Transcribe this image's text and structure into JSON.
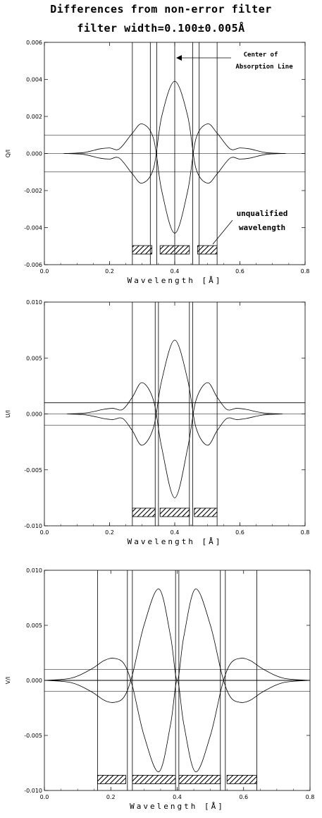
{
  "title_line1": "Differences from non-error filter",
  "title_line2": "filter width=0.100±0.005Å",
  "annotations": {
    "center_line1": "Center of",
    "center_line2": "Absorption Line",
    "unqualified_line1": "unqualified",
    "unqualified_line2": "wavelength"
  },
  "chart_data": [
    {
      "type": "line",
      "ylabel": "Q/I",
      "xlabel": "Wavelength [Å]",
      "xlim": [
        0.0,
        0.8
      ],
      "ylim": [
        -0.006,
        0.006
      ],
      "xticks": [
        "0.0",
        "0.2",
        "0.4",
        "0.6",
        "0.8"
      ],
      "yticks": [
        "-0.006",
        "-0.004",
        "-0.002",
        "0.000",
        "0.002",
        "0.004",
        "0.006"
      ],
      "threshold": 0.001,
      "series": [
        {
          "x": [
            0.06,
            0.12,
            0.17,
            0.2,
            0.23,
            0.27,
            0.3,
            0.335,
            0.36,
            0.4,
            0.44,
            0.465,
            0.5,
            0.53,
            0.57,
            0.6,
            0.63,
            0.68,
            0.74
          ],
          "values": [
            0,
            5e-05,
            0.00025,
            0.0003,
            0.00025,
            0.0011,
            0.0016,
            0.0008,
            -0.002,
            -0.0043,
            -0.002,
            0.0008,
            0.0016,
            0.0011,
            0.00025,
            0.0003,
            0.00025,
            5e-05,
            0
          ]
        },
        {
          "x": [
            0.06,
            0.12,
            0.17,
            0.2,
            0.23,
            0.27,
            0.3,
            0.335,
            0.36,
            0.4,
            0.44,
            0.465,
            0.5,
            0.53,
            0.57,
            0.6,
            0.63,
            0.68,
            0.74
          ],
          "values": [
            0,
            -5e-05,
            -0.00025,
            -0.0003,
            -0.00025,
            -0.0011,
            -0.0016,
            -0.0008,
            0.002,
            0.0039,
            0.002,
            -0.0008,
            -0.0016,
            -0.0011,
            -0.00025,
            -0.0003,
            -0.00025,
            -5e-05,
            0
          ]
        }
      ],
      "vlines": [
        0.27,
        0.325,
        0.345,
        0.4,
        0.455,
        0.475,
        0.53
      ],
      "unqualified_ranges": [
        [
          0.27,
          0.33
        ],
        [
          0.355,
          0.445
        ],
        [
          0.47,
          0.53
        ]
      ],
      "unqualified_y": -0.0052,
      "grid": false
    },
    {
      "type": "line",
      "ylabel": "U/I",
      "xlabel": "Wavelength [Å]",
      "xlim": [
        0.0,
        0.8
      ],
      "ylim": [
        -0.01,
        0.01
      ],
      "xticks": [
        "0.0",
        "0.2",
        "0.4",
        "0.6",
        "0.8"
      ],
      "yticks": [
        "-0.010",
        "-0.005",
        "0.000",
        "0.005",
        "0.010"
      ],
      "threshold": 0.001,
      "series": [
        {
          "x": [
            0.07,
            0.13,
            0.18,
            0.21,
            0.24,
            0.27,
            0.3,
            0.335,
            0.36,
            0.4,
            0.44,
            0.465,
            0.5,
            0.53,
            0.56,
            0.59,
            0.62,
            0.67,
            0.73
          ],
          "values": [
            0,
            0.0001,
            0.0004,
            0.0005,
            0.0004,
            0.0015,
            0.0028,
            0.0012,
            -0.003,
            -0.0075,
            -0.003,
            0.0012,
            0.0028,
            0.0015,
            0.0004,
            0.0005,
            0.0004,
            0.0001,
            0
          ]
        },
        {
          "x": [
            0.07,
            0.13,
            0.18,
            0.21,
            0.24,
            0.27,
            0.3,
            0.335,
            0.36,
            0.4,
            0.44,
            0.465,
            0.5,
            0.53,
            0.56,
            0.59,
            0.62,
            0.67,
            0.73
          ],
          "values": [
            0,
            -0.0001,
            -0.0004,
            -0.0005,
            -0.0004,
            -0.0015,
            -0.0028,
            -0.0012,
            0.003,
            0.0066,
            0.003,
            -0.0012,
            -0.0028,
            -0.0015,
            -0.0004,
            -0.0005,
            -0.0004,
            -0.0001,
            0
          ]
        }
      ],
      "vlines": [
        0.27,
        0.34,
        0.35,
        0.445,
        0.455,
        0.53
      ],
      "unqualified_ranges": [
        [
          0.27,
          0.34
        ],
        [
          0.355,
          0.445
        ],
        [
          0.46,
          0.53
        ]
      ],
      "unqualified_y": -0.0088,
      "grid": false
    },
    {
      "type": "line",
      "ylabel": "V/I",
      "xlabel": "Wavelength [Å]",
      "xlim": [
        0.0,
        0.8
      ],
      "ylim": [
        -0.01,
        0.01
      ],
      "xticks": [
        "0.0",
        "0.2",
        "0.4",
        "0.6",
        "0.8"
      ],
      "yticks": [
        "-0.010",
        "-0.005",
        "0.000",
        "0.005",
        "0.010"
      ],
      "threshold": 0.001,
      "series": [
        {
          "x": [
            0.0,
            0.08,
            0.14,
            0.18,
            0.21,
            0.24,
            0.265,
            0.3,
            0.345,
            0.38,
            0.4,
            0.42,
            0.455,
            0.5,
            0.535,
            0.56,
            0.59,
            0.62,
            0.66,
            0.72,
            0.8
          ],
          "values": [
            0,
            0.0002,
            0.001,
            0.0018,
            0.002,
            0.0015,
            -0.0005,
            -0.005,
            -0.0083,
            -0.004,
            0,
            -0.004,
            -0.0083,
            -0.005,
            -0.0005,
            0.0015,
            0.002,
            0.0018,
            0.001,
            0.0002,
            0
          ]
        },
        {
          "x": [
            0.0,
            0.08,
            0.14,
            0.18,
            0.21,
            0.24,
            0.265,
            0.3,
            0.345,
            0.38,
            0.4,
            0.42,
            0.455,
            0.5,
            0.535,
            0.56,
            0.59,
            0.62,
            0.66,
            0.72,
            0.8
          ],
          "values": [
            0,
            -0.0002,
            -0.001,
            -0.0018,
            -0.002,
            -0.0015,
            0.0005,
            0.005,
            0.0083,
            0.004,
            0,
            0.004,
            0.0083,
            0.005,
            0.0005,
            -0.0015,
            -0.002,
            -0.0018,
            -0.001,
            -0.0002,
            0
          ]
        }
      ],
      "vlines": [
        0.16,
        0.25,
        0.265,
        0.395,
        0.405,
        0.53,
        0.545,
        0.64
      ],
      "unqualified_ranges": [
        [
          0.16,
          0.245
        ],
        [
          0.265,
          0.395
        ],
        [
          0.405,
          0.53
        ],
        [
          0.55,
          0.64
        ]
      ],
      "unqualified_y": -0.009,
      "grid": false
    }
  ]
}
